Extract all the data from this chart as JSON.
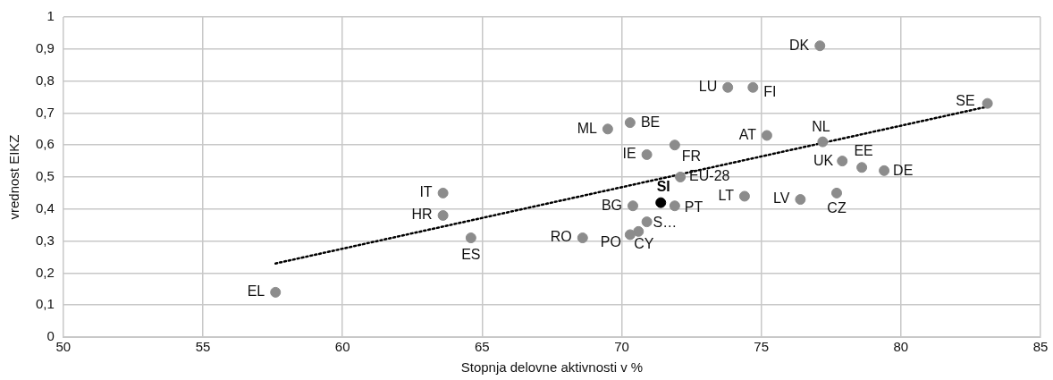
{
  "chart_data": {
    "type": "scatter",
    "xlabel": "Stopnja delovne aktivnosti v %",
    "ylabel": "vrednost EIKZ",
    "xlim": [
      50,
      85
    ],
    "xticks": [
      50,
      55,
      60,
      65,
      70,
      75,
      80,
      85
    ],
    "ylim": [
      0,
      1
    ],
    "yticks": [
      0,
      {
        "value": 0.1,
        "label": "0,1"
      },
      {
        "value": 0.2,
        "label": "0,2"
      },
      {
        "value": 0.3,
        "label": "0,3"
      },
      {
        "value": 0.4,
        "label": "0,4"
      },
      {
        "value": 0.5,
        "label": "0,5"
      },
      {
        "value": 0.6,
        "label": "0,6"
      },
      {
        "value": 0.7,
        "label": "0,7"
      },
      {
        "value": 0.8,
        "label": "0,8"
      },
      {
        "value": 0.9,
        "label": "0,9"
      },
      1
    ],
    "grid": true,
    "legend": false,
    "marker": "circle",
    "series": [
      {
        "color": "#8c8c8c",
        "x": [
          77.1,
          73.8,
          74.7,
          83.1,
          69.5,
          70.3,
          75.2,
          77.2,
          71.9,
          70.9,
          77.9,
          78.6,
          79.4,
          72.1,
          77.7,
          74.4,
          76.4,
          70.4,
          71.9,
          70.9,
          70.6,
          70.3,
          68.6,
          63.6,
          63.6,
          64.6,
          57.6
        ],
        "values": [
          0.91,
          0.78,
          0.78,
          0.73,
          0.65,
          0.67,
          0.63,
          0.61,
          0.6,
          0.57,
          0.55,
          0.53,
          0.52,
          0.5,
          0.45,
          0.44,
          0.43,
          0.41,
          0.41,
          0.36,
          0.33,
          0.32,
          0.31,
          0.45,
          0.38,
          0.31,
          0.14
        ]
      },
      {
        "name": "SI",
        "color": "#000000",
        "x": [
          71.4
        ],
        "values": [
          0.42
        ]
      },
      {
        "type": "line",
        "color": "#000000",
        "line_style": "dotted",
        "marker": "none",
        "x": [
          57.6,
          83.1
        ],
        "values": [
          0.23,
          0.72
        ]
      }
    ],
    "annotations": [
      {
        "text": "DK",
        "x": 77.1,
        "y": 0.91
      },
      {
        "text": "LU",
        "x": 73.8,
        "y": 0.78
      },
      {
        "text": "FI",
        "x": 74.7,
        "y": 0.78
      },
      {
        "text": "SE",
        "x": 83.1,
        "y": 0.73
      },
      {
        "text": "ML",
        "x": 69.5,
        "y": 0.65
      },
      {
        "text": "BE",
        "x": 70.3,
        "y": 0.67
      },
      {
        "text": "AT",
        "x": 75.2,
        "y": 0.63
      },
      {
        "text": "NL",
        "x": 77.2,
        "y": 0.61
      },
      {
        "text": "FR",
        "x": 71.9,
        "y": 0.6
      },
      {
        "text": "IE",
        "x": 70.9,
        "y": 0.57
      },
      {
        "text": "UK",
        "x": 77.9,
        "y": 0.55
      },
      {
        "text": "EE",
        "x": 78.6,
        "y": 0.53
      },
      {
        "text": "DE",
        "x": 79.4,
        "y": 0.52
      },
      {
        "text": "EU-28",
        "x": 72.1,
        "y": 0.5
      },
      {
        "text": "CZ",
        "x": 77.7,
        "y": 0.45
      },
      {
        "text": "LT",
        "x": 74.4,
        "y": 0.44
      },
      {
        "text": "LV",
        "x": 76.4,
        "y": 0.43
      },
      {
        "text": "BG",
        "x": 70.4,
        "y": 0.41
      },
      {
        "text": "PT",
        "x": 71.9,
        "y": 0.41
      },
      {
        "text": "S…",
        "x": 70.9,
        "y": 0.36
      },
      {
        "text": "CY",
        "x": 70.6,
        "y": 0.33
      },
      {
        "text": "PO",
        "x": 70.3,
        "y": 0.32
      },
      {
        "text": "RO",
        "x": 68.6,
        "y": 0.31
      },
      {
        "text": "IT",
        "x": 63.6,
        "y": 0.45
      },
      {
        "text": "HR",
        "x": 63.6,
        "y": 0.38
      },
      {
        "text": "ES",
        "x": 64.6,
        "y": 0.31
      },
      {
        "text": "EL",
        "x": 57.6,
        "y": 0.14
      }
    ]
  }
}
